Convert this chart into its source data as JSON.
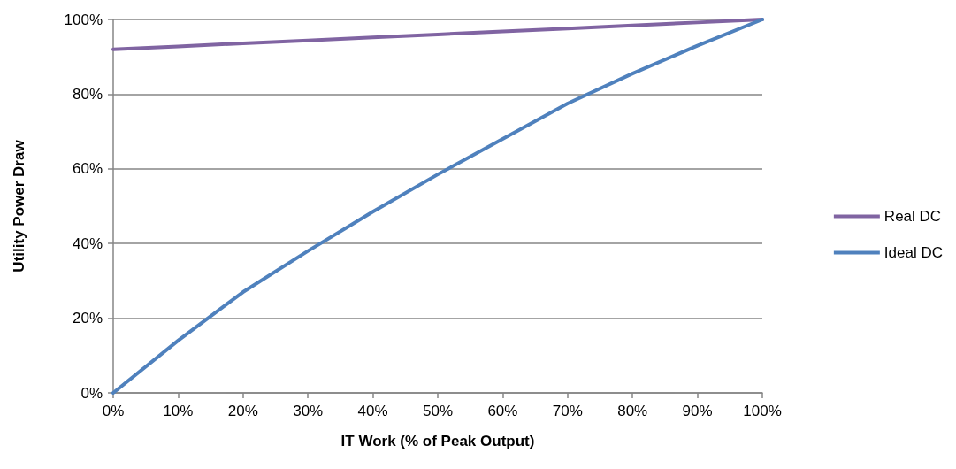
{
  "chart_data": {
    "type": "line",
    "xlabel": "IT Work (% of Peak Output)",
    "ylabel": "Utility Power Draw",
    "x": [
      0,
      10,
      20,
      30,
      40,
      50,
      60,
      70,
      80,
      90,
      100
    ],
    "series": [
      {
        "name": "Real DC",
        "color": "#8064a2",
        "values": [
          92,
          92.8,
          93.6,
          94.4,
          95.2,
          96,
          96.8,
          97.6,
          98.4,
          99.2,
          100
        ]
      },
      {
        "name": "Ideal DC",
        "color": "#4f81bd",
        "values": [
          0,
          14,
          27,
          38,
          48.5,
          58.5,
          68,
          77.5,
          85.5,
          93,
          100
        ]
      }
    ],
    "xlim": [
      0,
      100
    ],
    "xticks": [
      {
        "value": 0,
        "label": "0%"
      },
      {
        "value": 10,
        "label": "10%"
      },
      {
        "value": 20,
        "label": "20%"
      },
      {
        "value": 30,
        "label": "30%"
      },
      {
        "value": 40,
        "label": "40%"
      },
      {
        "value": 50,
        "label": "50%"
      },
      {
        "value": 60,
        "label": "60%"
      },
      {
        "value": 70,
        "label": "70%"
      },
      {
        "value": 80,
        "label": "80%"
      },
      {
        "value": 90,
        "label": "90%"
      },
      {
        "value": 100,
        "label": "100%"
      }
    ],
    "ylim": [
      0,
      100
    ],
    "yticks": [
      {
        "value": 0,
        "label": "0%"
      },
      {
        "value": 20,
        "label": "20%"
      },
      {
        "value": 40,
        "label": "40%"
      },
      {
        "value": 60,
        "label": "60%"
      },
      {
        "value": 80,
        "label": "80%"
      },
      {
        "value": 100,
        "label": "100%"
      }
    ],
    "grid": "y",
    "legend": "right",
    "marker": "none",
    "line_style": "solid"
  }
}
